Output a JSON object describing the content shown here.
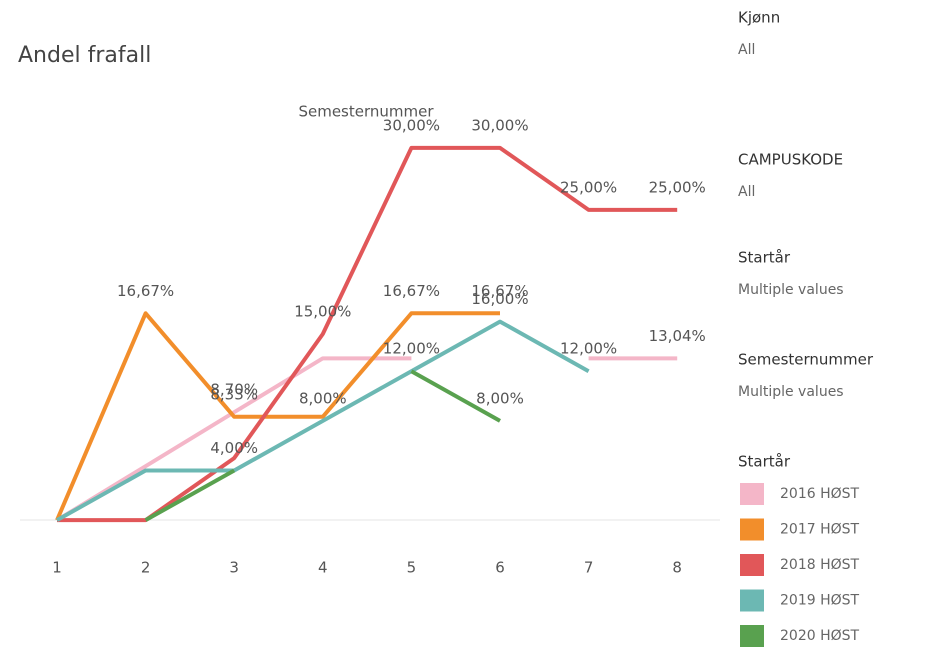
{
  "chart_data": {
    "type": "line",
    "title": "Andel frafall",
    "x_label": "Semesternummer",
    "categories": [
      "1",
      "2",
      "3",
      "4",
      "5",
      "6",
      "7",
      "8"
    ],
    "ylim": [
      -1.6,
      31.6
    ],
    "legend_title": "Startår",
    "series": [
      {
        "name": "2016 HØST",
        "color": "#f4b6c8",
        "values": [
          0,
          4.35,
          8.7,
          13.04,
          13.04,
          null,
          13.04,
          13.04
        ],
        "value_labels": [
          null,
          null,
          "8,70%",
          null,
          null,
          null,
          null,
          "13,04%"
        ]
      },
      {
        "name": "2017 HØST",
        "color": "#f28e2b",
        "values": [
          0,
          16.67,
          8.33,
          8.33,
          16.67,
          16.67,
          null,
          null
        ],
        "value_labels": [
          null,
          "16,67%",
          "8,33%",
          null,
          "16,67%",
          "16,67%",
          null,
          null
        ]
      },
      {
        "name": "2018 HØST",
        "color": "#e15759",
        "values": [
          0,
          0,
          5,
          15,
          30,
          30,
          25,
          25
        ],
        "value_labels": [
          null,
          null,
          null,
          "15,00%",
          "30,00%",
          "30,00%",
          "25,00%",
          "25,00%"
        ]
      },
      {
        "name": "2019 HØST",
        "color": "#6cb8b3",
        "values": [
          0,
          4,
          4,
          8,
          12,
          16,
          12,
          null
        ],
        "value_labels": [
          null,
          null,
          null,
          "8,00%",
          "12,00%",
          "16,00%",
          "12,00%",
          null
        ]
      },
      {
        "name": "2020 HØST",
        "color": "#59a14f",
        "values": [
          null,
          0,
          4,
          null,
          12,
          8,
          null,
          null
        ],
        "value_labels": [
          null,
          null,
          "4,00%",
          null,
          null,
          "8,00%",
          null,
          null
        ]
      }
    ]
  },
  "filters": [
    {
      "title": "Kjønn",
      "value": "All"
    },
    {
      "title": "CAMPUSKODE",
      "value": "All"
    },
    {
      "title": "Startår",
      "value": "Multiple values"
    },
    {
      "title": "Semesternummer",
      "value": "Multiple values"
    }
  ]
}
